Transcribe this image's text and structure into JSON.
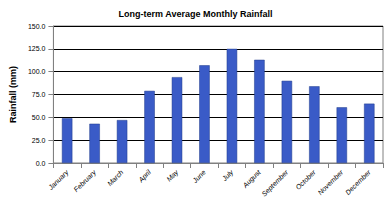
{
  "chart_data": {
    "type": "bar",
    "title": "Long-term Average Monthly Rainfall",
    "y_label": "Rainfall (mm)",
    "categories": [
      "January",
      "February",
      "March",
      "April",
      "May",
      "June",
      "July",
      "August",
      "September",
      "October",
      "November",
      "December"
    ],
    "values": [
      49,
      43,
      47,
      79,
      94,
      107,
      125,
      113,
      90,
      84,
      61,
      65
    ],
    "color": "#3a5bc7",
    "ylim": [
      0,
      150
    ],
    "yticks": [
      {
        "value": 0,
        "label": "0.0"
      },
      {
        "value": 25,
        "label": "25.0"
      },
      {
        "value": 50,
        "label": "50.0"
      },
      {
        "value": 75,
        "label": "75.0"
      },
      {
        "value": 100,
        "label": "100.0"
      },
      {
        "value": 125,
        "label": "125.0"
      },
      {
        "value": 150,
        "label": "150.0"
      }
    ],
    "grid": true
  }
}
